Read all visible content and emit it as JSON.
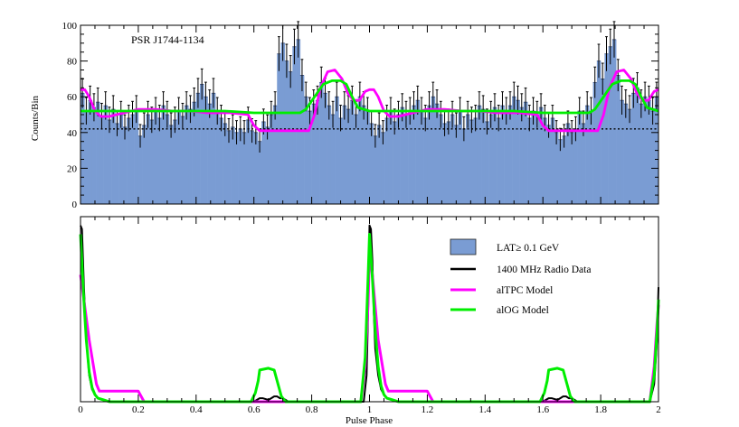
{
  "chart_data": [
    {
      "type": "bar",
      "title": "PSR J1744-1134",
      "xlabel": "",
      "ylabel": "Counts/Bin",
      "xlim": [
        0,
        2
      ],
      "ylim": [
        0,
        100
      ],
      "yticks": [
        0,
        20,
        40,
        60,
        80,
        100
      ],
      "background_level": 42,
      "bin_values": [
        62,
        52,
        58,
        54,
        57,
        49,
        55,
        47,
        53,
        45,
        50,
        43,
        48,
        50,
        53,
        38,
        44,
        50,
        47,
        52,
        48,
        55,
        50,
        44,
        47,
        52,
        49,
        55,
        53,
        57,
        62,
        67,
        60,
        56,
        62,
        52,
        48,
        45,
        41,
        43,
        40,
        42,
        40,
        47,
        41,
        40,
        35,
        46,
        43,
        50,
        55,
        84,
        90,
        80,
        74,
        88,
        92,
        72,
        60,
        52,
        56,
        58,
        68,
        62,
        55,
        50,
        60,
        48,
        55,
        53,
        58,
        50,
        60,
        55,
        52,
        45,
        38,
        44,
        40,
        48,
        52,
        46,
        50,
        54,
        50,
        52,
        55,
        58,
        52,
        48,
        55,
        60,
        56,
        50,
        45,
        46,
        50,
        44,
        52,
        42,
        50,
        47,
        48,
        55,
        53,
        46,
        50,
        54,
        48,
        55,
        52,
        55,
        60,
        58,
        54,
        57,
        48,
        52,
        50,
        54,
        48,
        44,
        48,
        40,
        36,
        38,
        45,
        40,
        42,
        52,
        45,
        55,
        52,
        68,
        80,
        70,
        84,
        88,
        92,
        72,
        58,
        56,
        53,
        62,
        65,
        56,
        60,
        58,
        52,
        60
      ],
      "series": [
        {
          "name": "alTPC Model",
          "color": "#ff00ff",
          "x": [
            0,
            0.015,
            0.03,
            0.05,
            0.07,
            0.1,
            0.15,
            0.2,
            0.26,
            0.32,
            0.38,
            0.44,
            0.52,
            0.58,
            0.6,
            0.62,
            0.68,
            0.72,
            0.76,
            0.79,
            0.81,
            0.83,
            0.855,
            0.88,
            0.905,
            0.925,
            0.945,
            0.965,
            0.985,
            1.0,
            1.015,
            1.03,
            1.05,
            1.07,
            1.1,
            1.15,
            1.2,
            1.26,
            1.32,
            1.38,
            1.44,
            1.52,
            1.58,
            1.6,
            1.62,
            1.68,
            1.72,
            1.76,
            1.79,
            1.81,
            1.83,
            1.855,
            1.88,
            1.905,
            1.925,
            1.945,
            1.965,
            1.985,
            2.0
          ],
          "y": [
            64,
            64,
            60,
            52,
            49,
            49,
            51,
            53,
            53,
            52,
            52,
            51,
            51,
            50,
            44,
            41,
            41,
            41,
            41,
            41,
            50,
            65,
            74,
            75,
            70,
            62,
            58,
            58,
            63,
            64,
            64,
            60,
            52,
            49,
            49,
            51,
            53,
            53,
            52,
            52,
            51,
            51,
            50,
            44,
            41,
            41,
            41,
            41,
            41,
            50,
            65,
            74,
            75,
            70,
            62,
            58,
            58,
            63,
            64
          ]
        },
        {
          "name": "alOG Model",
          "color": "#00ee00",
          "x": [
            0,
            0.05,
            0.1,
            0.2,
            0.3,
            0.4,
            0.5,
            0.6,
            0.7,
            0.76,
            0.78,
            0.81,
            0.84,
            0.87,
            0.9,
            0.92,
            0.94,
            0.96,
            1.0,
            1.05,
            1.1,
            1.2,
            1.3,
            1.4,
            1.5,
            1.6,
            1.7,
            1.76,
            1.78,
            1.81,
            1.84,
            1.87,
            1.9,
            1.92,
            1.94,
            1.96,
            2.0
          ],
          "y": [
            52,
            52,
            52,
            52,
            52,
            52,
            52,
            51,
            51,
            51,
            53,
            60,
            67,
            69,
            69,
            67,
            60,
            54,
            52,
            52,
            52,
            52,
            52,
            52,
            52,
            51,
            51,
            51,
            53,
            60,
            67,
            69,
            69,
            67,
            60,
            54,
            52
          ]
        }
      ]
    },
    {
      "type": "line",
      "title": "",
      "xlabel": "Pulse Phase",
      "ylabel": "",
      "xlim": [
        0,
        2
      ],
      "ylim": [
        0,
        1.05
      ],
      "xtick_labels": [
        "0",
        "0.2",
        "0.4",
        "0.6",
        "0.8",
        "1",
        "1.2",
        "1.4",
        "1.6",
        "1.8",
        "2"
      ],
      "legend_position": "right",
      "legend": [
        {
          "label": "LAT≥ 0.1 GeV",
          "kind": "box"
        },
        {
          "label": "1400 MHz Radio Data",
          "kind": "line",
          "color": "#000000"
        },
        {
          "label": "alTPC Model",
          "kind": "line",
          "color": "#ff00ff"
        },
        {
          "label": "alOG Model",
          "kind": "line",
          "color": "#00ee00"
        }
      ],
      "series": [
        {
          "name": "1400 MHz Radio Data",
          "color": "#000000",
          "x": [
            0,
            0.005,
            0.012,
            0.02,
            0.03,
            0.04,
            0.05,
            0.06,
            0.08,
            0.1,
            0.6,
            0.61,
            0.62,
            0.63,
            0.65,
            0.66,
            0.67,
            0.68,
            0.69,
            0.7,
            0.71,
            0.72,
            0.98,
            0.99,
            0.995,
            1.0,
            1.005,
            1.01,
            1.015,
            1.02,
            1.03,
            1.04,
            1.05,
            1.06,
            1.08,
            1.1,
            1.6,
            1.61,
            1.62,
            1.63,
            1.65,
            1.66,
            1.67,
            1.68,
            1.69,
            1.7,
            1.71,
            1.72,
            1.97,
            1.985,
            1.995,
            2.0
          ],
          "y": [
            1.0,
            0.98,
            0.65,
            0.35,
            0.15,
            0.07,
            0.04,
            0.02,
            0.01,
            0,
            0,
            0.01,
            0.02,
            0.02,
            0.01,
            0.02,
            0.03,
            0.03,
            0.02,
            0.02,
            0.01,
            0,
            0,
            0.15,
            0.5,
            1.0,
            0.98,
            0.8,
            0.5,
            0.3,
            0.15,
            0.07,
            0.04,
            0.02,
            0.01,
            0,
            0,
            0.01,
            0.02,
            0.02,
            0.01,
            0.02,
            0.03,
            0.03,
            0.02,
            0.02,
            0.01,
            0,
            0,
            0.1,
            0.35,
            0.65
          ]
        },
        {
          "name": "alTPC Model",
          "color": "#ff00ff",
          "x": [
            0,
            0.01,
            0.03,
            0.045,
            0.055,
            0.065,
            0.1,
            0.15,
            0.2,
            0.22,
            0.25,
            0.97,
            0.985,
            0.995,
            1.0,
            1.01,
            1.03,
            1.045,
            1.055,
            1.065,
            1.1,
            1.15,
            1.2,
            1.22,
            1.25,
            1.97,
            1.985,
            1.995,
            2.0
          ],
          "y": [
            0.72,
            0.6,
            0.35,
            0.2,
            0.1,
            0.06,
            0.06,
            0.06,
            0.06,
            0,
            0,
            0,
            0.2,
            0.55,
            0.85,
            0.72,
            0.35,
            0.2,
            0.1,
            0.06,
            0.06,
            0.06,
            0.06,
            0,
            0,
            0,
            0.2,
            0.45,
            0.55
          ]
        },
        {
          "name": "alOG Model",
          "color": "#00ee00",
          "x": [
            0,
            0.01,
            0.02,
            0.03,
            0.04,
            0.05,
            0.06,
            0.08,
            0.1,
            0.59,
            0.605,
            0.615,
            0.62,
            0.65,
            0.67,
            0.68,
            0.695,
            0.71,
            0.97,
            0.985,
            0.995,
            1.0,
            1.01,
            1.02,
            1.03,
            1.04,
            1.05,
            1.06,
            1.08,
            1.1,
            1.59,
            1.605,
            1.615,
            1.62,
            1.65,
            1.67,
            1.68,
            1.695,
            1.71,
            1.97,
            1.985,
            1.995,
            2.0
          ],
          "y": [
            0.95,
            0.62,
            0.35,
            0.17,
            0.08,
            0.04,
            0.02,
            0.01,
            0,
            0,
            0.05,
            0.12,
            0.18,
            0.19,
            0.18,
            0.12,
            0.03,
            0,
            0,
            0.25,
            0.7,
            0.95,
            0.7,
            0.4,
            0.2,
            0.09,
            0.04,
            0.02,
            0.01,
            0,
            0,
            0.05,
            0.12,
            0.18,
            0.19,
            0.18,
            0.12,
            0.03,
            0,
            0,
            0.15,
            0.4,
            0.58
          ]
        }
      ]
    }
  ]
}
